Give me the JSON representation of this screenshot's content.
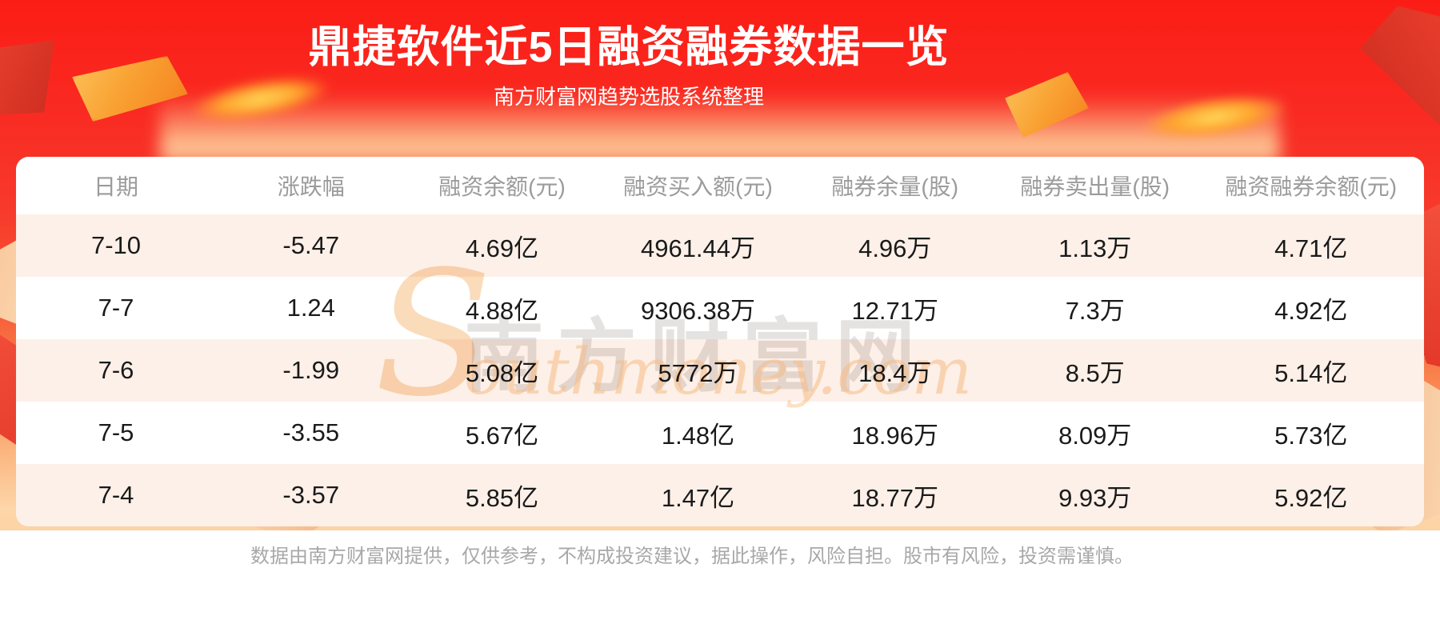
{
  "banner": {
    "title": "鼎捷软件近5日融资融券数据一览",
    "subtitle": "南方财富网趋势选股系统整理"
  },
  "table": {
    "columns": [
      "日期",
      "涨跌幅",
      "融资余额(元)",
      "融资买入额(元)",
      "融券余量(股)",
      "融券卖出量(股)",
      "融资融券余额(元)"
    ],
    "rows": [
      [
        "7-10",
        "-5.47",
        "4.69亿",
        "4961.44万",
        "4.96万",
        "1.13万",
        "4.71亿"
      ],
      [
        "7-7",
        "1.24",
        "4.88亿",
        "9306.38万",
        "12.71万",
        "7.3万",
        "4.92亿"
      ],
      [
        "7-6",
        "-1.99",
        "5.08亿",
        "5772万",
        "18.4万",
        "8.5万",
        "5.14亿"
      ],
      [
        "7-5",
        "-3.55",
        "5.67亿",
        "1.48亿",
        "18.96万",
        "8.09万",
        "5.73亿"
      ],
      [
        "7-4",
        "-3.57",
        "5.85亿",
        "1.47亿",
        "18.77万",
        "9.93万",
        "5.92亿"
      ]
    ]
  },
  "watermark": {
    "cn": "南方财富网",
    "en_initial": "S",
    "en_rest": "outhmoney.com"
  },
  "footer": {
    "disclaimer": "数据由南方财富网提供，仅供参考，不构成投资建议，据此操作，风险自担。股市有风险，投资需谨慎。"
  },
  "colors": {
    "banner_red_top": "#fa1f17",
    "banner_peach_bottom": "#fdd6a9",
    "row_alt_background": "#fdf0e8",
    "header_text": "#9b9b9b",
    "data_text": "#1a1a1a",
    "title_text": "#ffffff",
    "footer_text": "#a8a8a8",
    "gold_accent": "#ffb545"
  },
  "chart_data": {
    "type": "table",
    "title": "鼎捷软件近5日融资融券数据一览",
    "subtitle": "南方财富网趋势选股系统整理",
    "columns": [
      "日期",
      "涨跌幅",
      "融资余额(元)",
      "融资买入额(元)",
      "融券余量(股)",
      "融券卖出量(股)",
      "融资融券余额(元)"
    ],
    "rows": [
      [
        "7-10",
        "-5.47",
        "4.69亿",
        "4961.44万",
        "4.96万",
        "1.13万",
        "4.71亿"
      ],
      [
        "7-7",
        "1.24",
        "4.88亿",
        "9306.38万",
        "12.71万",
        "7.3万",
        "4.92亿"
      ],
      [
        "7-6",
        "-1.99",
        "5.08亿",
        "5772万",
        "18.4万",
        "8.5万",
        "5.14亿"
      ],
      [
        "7-5",
        "-3.55",
        "5.67亿",
        "1.48亿",
        "18.96万",
        "8.09万",
        "5.73亿"
      ],
      [
        "7-4",
        "-3.57",
        "5.85亿",
        "1.47亿",
        "18.77万",
        "9.93万",
        "5.92亿"
      ]
    ]
  }
}
